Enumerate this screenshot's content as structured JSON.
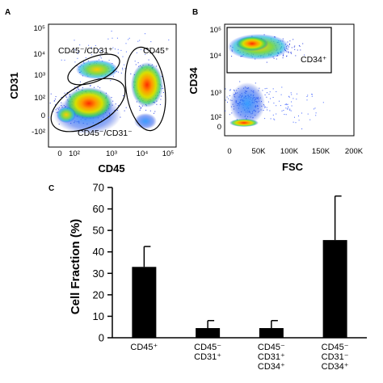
{
  "panels": {
    "a": {
      "letter": "A",
      "xlabel": "CD45",
      "ylabel": "CD31",
      "xticks": [
        "0",
        "10²",
        "10³",
        "10⁴",
        "10⁵"
      ],
      "yticks": [
        "10⁵",
        "10⁴",
        "10³",
        "10²",
        "0",
        "-10²"
      ],
      "gates": [
        {
          "label": "CD45⁻/CD31⁺"
        },
        {
          "label": "CD45⁺"
        },
        {
          "label": "CD45⁻/CD31⁻"
        }
      ]
    },
    "b": {
      "letter": "B",
      "xlabel": "FSC",
      "ylabel": "CD34",
      "xticks": [
        "0",
        "50K",
        "100K",
        "150K",
        "200K"
      ],
      "yticks": [
        "10⁵",
        "10⁴",
        "10³",
        "10²",
        "0"
      ],
      "gate_label": "CD34⁺"
    },
    "c": {
      "letter": "C"
    }
  },
  "chart_data": {
    "type": "bar",
    "ylabel": "Cell Fraction (%)",
    "ylim": [
      0,
      70
    ],
    "yticks": [
      0,
      10,
      20,
      30,
      40,
      50,
      60,
      70
    ],
    "categories": [
      [
        "CD45⁺"
      ],
      [
        "CD45⁻",
        "CD31⁺"
      ],
      [
        "CD45⁻",
        "CD31⁺",
        "CD34⁺"
      ],
      [
        "CD45⁻",
        "CD31⁻",
        "CD34⁺"
      ]
    ],
    "values": [
      33,
      4.5,
      4.5,
      45.5
    ],
    "errors": [
      9.5,
      3.5,
      3.5,
      20.5
    ],
    "bar_color": "#000000"
  }
}
